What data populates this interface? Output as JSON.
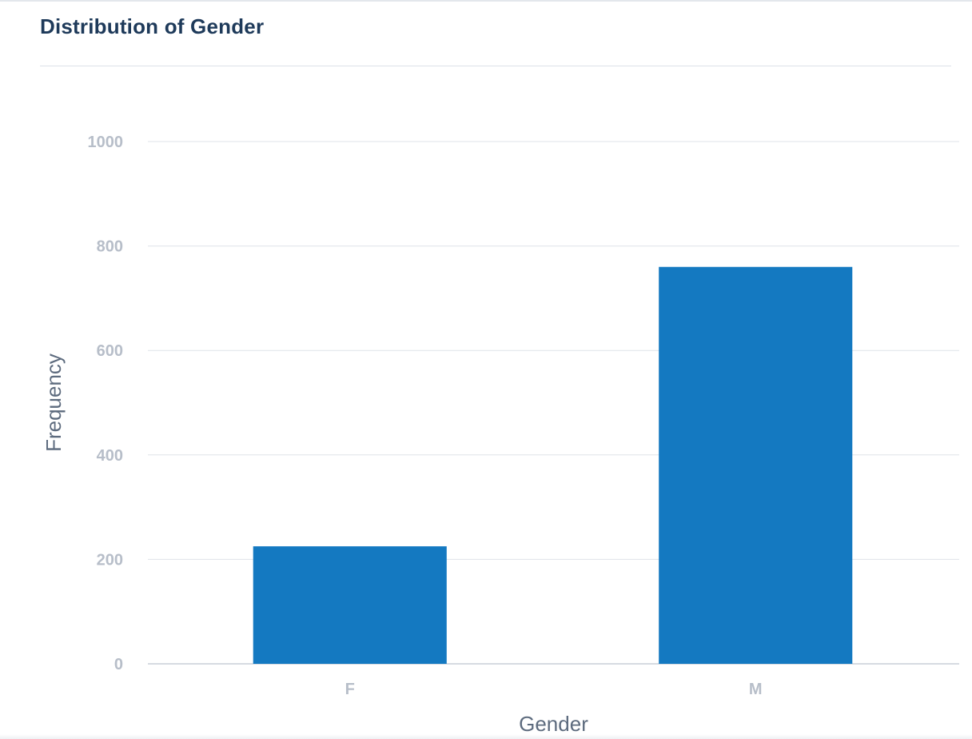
{
  "card": {
    "title": "Distribution of Gender"
  },
  "colors": {
    "bar": "#1479c1",
    "grid": "#dfe3e8",
    "baseline": "#c9cfd7"
  },
  "chart_data": {
    "type": "bar",
    "title": "Distribution of Gender",
    "xlabel": "Gender",
    "ylabel": "Frequency",
    "categories": [
      "F",
      "M"
    ],
    "values": [
      225,
      760
    ],
    "ylim": [
      0,
      1000
    ],
    "yticks": [
      0,
      200,
      400,
      600,
      800,
      1000
    ],
    "grid": true,
    "legend": "none"
  }
}
